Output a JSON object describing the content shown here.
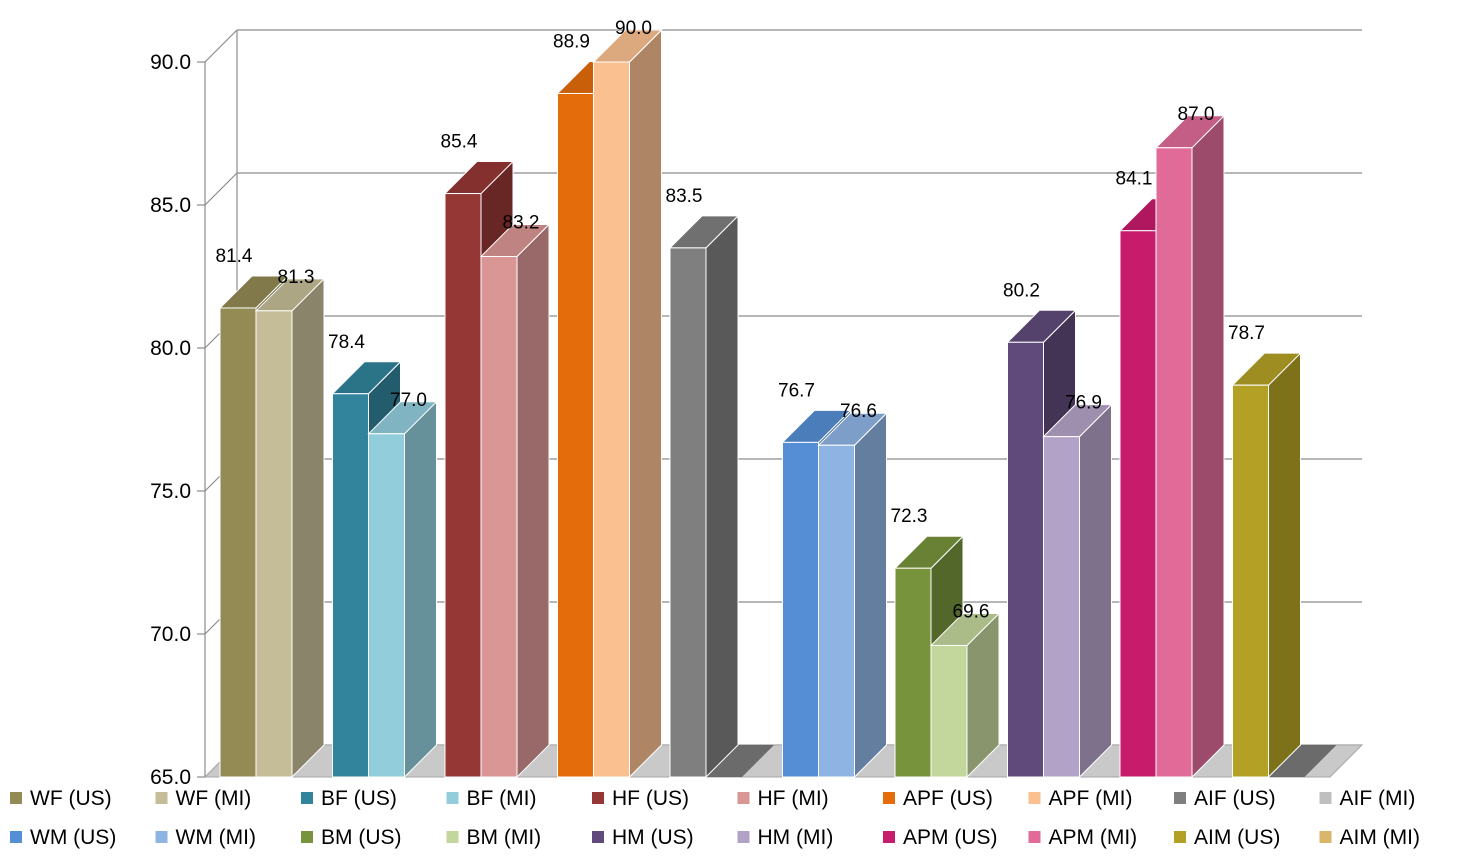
{
  "chart_data": {
    "type": "bar",
    "title": "",
    "xlabel": "",
    "ylabel": "",
    "ylim": [
      65,
      90
    ],
    "yticks": [
      "65.0",
      "70.0",
      "75.0",
      "80.0",
      "85.0",
      "90.0"
    ],
    "grid": true,
    "three_d": true,
    "legend_position": "bottom",
    "groups": [
      {
        "bars": [
          "WF (US)",
          "WF (MI)"
        ]
      },
      {
        "bars": [
          "BF (US)",
          "BF (MI)"
        ]
      },
      {
        "bars": [
          "HF (US)",
          "HF (MI)"
        ]
      },
      {
        "bars": [
          "APF (US)",
          "APF (MI)"
        ]
      },
      {
        "bars": [
          "AIF (US)",
          "AIF (MI)"
        ]
      },
      {
        "bars": [
          "WM (US)",
          "WM (MI)"
        ]
      },
      {
        "bars": [
          "BM (US)",
          "BM (MI)"
        ]
      },
      {
        "bars": [
          "HM (US)",
          "HM (MI)"
        ]
      },
      {
        "bars": [
          "APM (US)",
          "APM (MI)"
        ]
      },
      {
        "bars": [
          "AIM (US)",
          "AIM (MI)"
        ]
      }
    ],
    "series": [
      {
        "name": "WF (US)",
        "value": 81.4,
        "label": "81.4",
        "color": "#948A54"
      },
      {
        "name": "WF (MI)",
        "value": 81.3,
        "label": "81.3",
        "color": "#C4BD97"
      },
      {
        "name": "BF (US)",
        "value": 78.4,
        "label": "78.4",
        "color": "#31849B"
      },
      {
        "name": "BF (MI)",
        "value": 77.0,
        "label": "77.0",
        "color": "#92CDDC"
      },
      {
        "name": "HF (US)",
        "value": 85.4,
        "label": "85.4",
        "color": "#953735"
      },
      {
        "name": "HF (MI)",
        "value": 83.2,
        "label": "83.2",
        "color": "#D99694"
      },
      {
        "name": "APF (US)",
        "value": 88.9,
        "label": "88.9",
        "color": "#E46C0A"
      },
      {
        "name": "APF (MI)",
        "value": 90.0,
        "label": "90.0",
        "color": "#FAC090"
      },
      {
        "name": "AIF (US)",
        "value": 83.5,
        "label": "83.5",
        "color": "#7F7F7F"
      },
      {
        "name": "AIF (MI)",
        "value": null,
        "label": "",
        "color": "#BFBFBF"
      },
      {
        "name": "WM (US)",
        "value": 76.7,
        "label": "76.7",
        "color": "#558ED5"
      },
      {
        "name": "WM (MI)",
        "value": 76.6,
        "label": "76.6",
        "color": "#8EB4E3"
      },
      {
        "name": "BM (US)",
        "value": 72.3,
        "label": "72.3",
        "color": "#77933C"
      },
      {
        "name": "BM (MI)",
        "value": 69.6,
        "label": "69.6",
        "color": "#C3D69B"
      },
      {
        "name": "HM (US)",
        "value": 80.2,
        "label": "80.2",
        "color": "#604A7B"
      },
      {
        "name": "HM (MI)",
        "value": 76.9,
        "label": "76.9",
        "color": "#B3A2C7"
      },
      {
        "name": "APM (US)",
        "value": 84.1,
        "label": "84.1",
        "color": "#C71B6C"
      },
      {
        "name": "APM (MI)",
        "value": 87.0,
        "label": "87.0",
        "color": "#E06B98"
      },
      {
        "name": "AIM (US)",
        "value": 78.7,
        "label": "78.7",
        "color": "#B3A125"
      },
      {
        "name": "AIM (MI)",
        "value": null,
        "label": "",
        "color": "#D9B66A"
      }
    ]
  }
}
